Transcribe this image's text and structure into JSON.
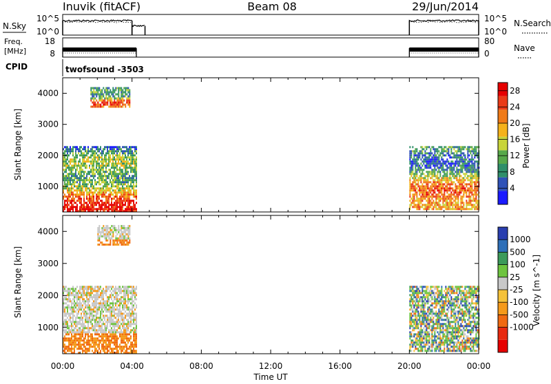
{
  "header": {
    "station": "Inuvik (fitACF)",
    "beam": "Beam 08",
    "date": "29/Jun/2014"
  },
  "nsky_panel": {
    "left_label": "N.Sky",
    "right_label": "N.Search",
    "left_ticks": [
      "10^5",
      "10^0"
    ],
    "right_ticks": [
      "10^5",
      "10^0"
    ]
  },
  "freq_panel": {
    "left_label_line1": "Freq.",
    "left_label_line2": "[MHz]",
    "right_label": "Nave",
    "left_ticks": [
      "18",
      "8"
    ],
    "right_ticks": [
      "80",
      "0"
    ]
  },
  "cpid_panel": {
    "label": "CPID",
    "program": "twofsound -3503"
  },
  "chart_data": [
    {
      "type": "heatmap",
      "title": "",
      "xlabel": "",
      "ylabel": "Slant Range [km]",
      "x_ticks": [
        "00:00",
        "04:00",
        "08:00",
        "12:00",
        "16:00",
        "20:00",
        "00:00"
      ],
      "y_ticks": [
        "1000",
        "2000",
        "3000",
        "4000"
      ],
      "xlim_hours": [
        0,
        24
      ],
      "ylim_km": [
        180,
        4500
      ],
      "colorbar": {
        "label": "Power [dB]",
        "ticks": [
          "4",
          "8",
          "12",
          "16",
          "20",
          "24",
          "28"
        ],
        "range": [
          0,
          30
        ],
        "colors": [
          "#1a1aff",
          "#2f52b8",
          "#2f8f6a",
          "#57a84a",
          "#c8d43a",
          "#f5b21b",
          "#f07a17",
          "#ea3b18",
          "#e60000"
        ]
      },
      "data_blocks": [
        {
          "t_start": 0.0,
          "t_end": 4.25,
          "range_km": [
            200,
            2300
          ],
          "level": "mixed high"
        },
        {
          "t_start": 1.6,
          "t_end": 3.9,
          "range_km": [
            3600,
            4200
          ],
          "level": "mixed"
        },
        {
          "t_start": 20.0,
          "t_end": 24.0,
          "range_km": [
            300,
            2300
          ],
          "level": "mixed high"
        }
      ]
    },
    {
      "type": "heatmap",
      "title": "",
      "xlabel": "Time UT",
      "ylabel": "Slant Range [km]",
      "x_ticks": [
        "00:00",
        "04:00",
        "08:00",
        "12:00",
        "16:00",
        "20:00",
        "00:00"
      ],
      "y_ticks": [
        "1000",
        "2000",
        "3000",
        "4000"
      ],
      "xlim_hours": [
        0,
        24
      ],
      "ylim_km": [
        180,
        4500
      ],
      "colorbar": {
        "label": "Velocity [m s^-1]",
        "ticks": [
          "1000",
          "500",
          "100",
          "25",
          "-25",
          "-100",
          "-500",
          "-1000"
        ],
        "colors": [
          "#2a3fb0",
          "#2e6fb8",
          "#3c9a5a",
          "#6ec43f",
          "#c8c8c8",
          "#f5c23a",
          "#f59a1b",
          "#f06a12",
          "#e82a10",
          "#e60000"
        ]
      },
      "data_blocks": [
        {
          "t_start": 0.0,
          "t_end": 4.25,
          "range_km": [
            200,
            2300
          ],
          "level": "mostly ground scatter / negative"
        },
        {
          "t_start": 2.0,
          "t_end": 3.9,
          "range_km": [
            3600,
            4200
          ],
          "level": "ground scatter"
        },
        {
          "t_start": 20.0,
          "t_end": 24.0,
          "range_km": [
            300,
            2300
          ],
          "level": "mixed positive and negative"
        }
      ]
    }
  ],
  "nsky_series": {
    "segments": [
      {
        "t_start": 0.0,
        "t_end": 4.0,
        "level": 0.7
      },
      {
        "t_start": 4.0,
        "t_end": 4.75,
        "level": 0.45
      },
      {
        "t_start": 20.0,
        "t_end": 24.0,
        "level": 0.7
      }
    ]
  }
}
